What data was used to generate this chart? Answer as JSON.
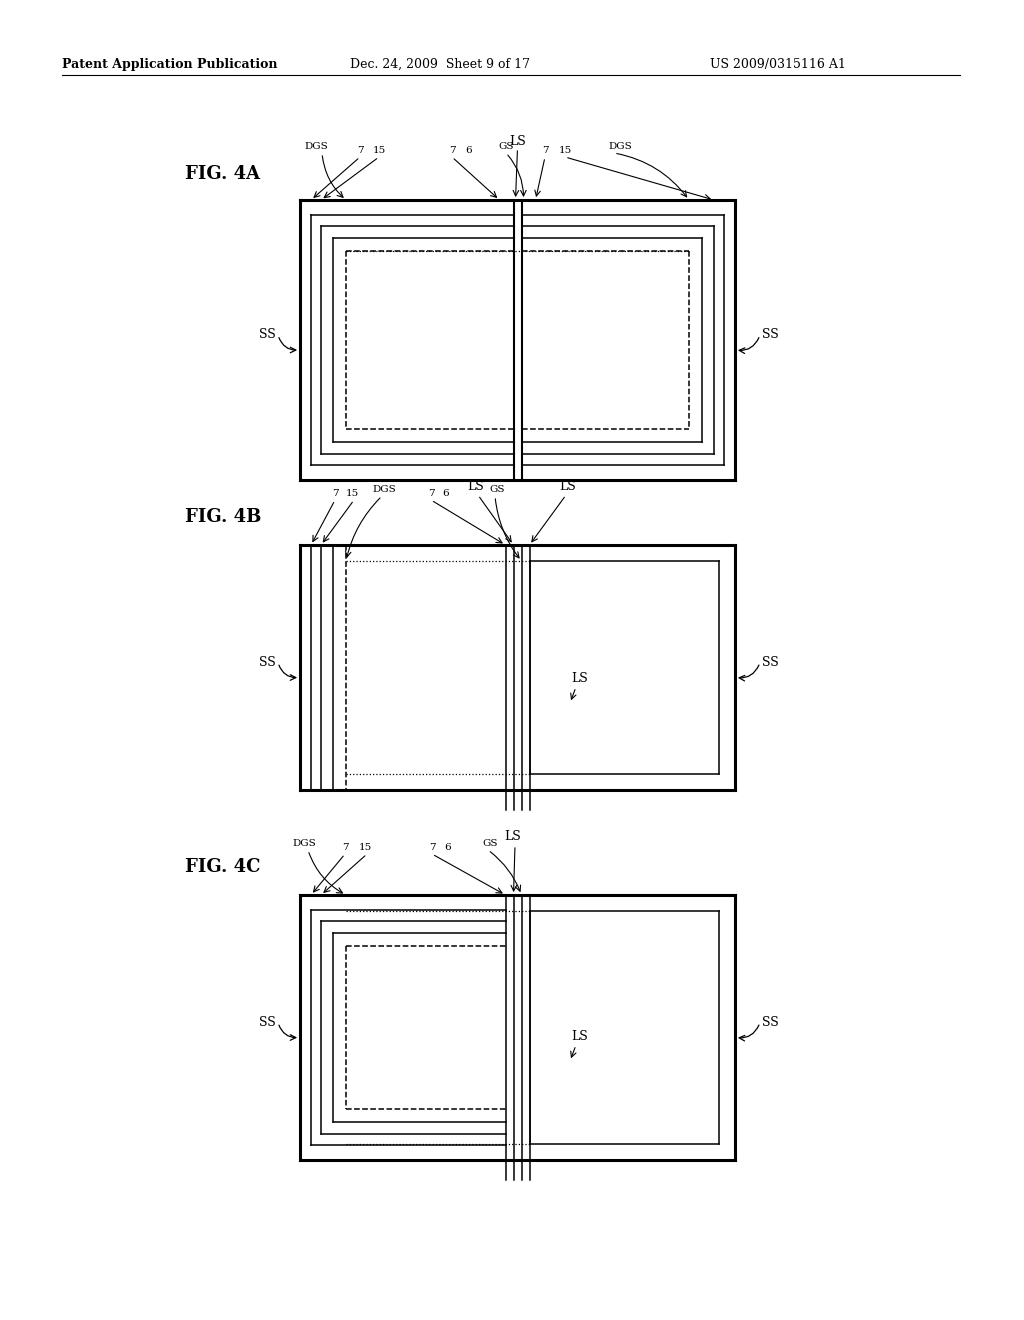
{
  "background_color": "#ffffff",
  "header_left": "Patent Application Publication",
  "header_mid": "Dec. 24, 2009  Sheet 9 of 17",
  "header_right": "US 2009/0315116 A1",
  "fig4A_label": "FIG. 4A",
  "fig4B_label": "FIG. 4B",
  "fig4C_label": "FIG. 4C"
}
